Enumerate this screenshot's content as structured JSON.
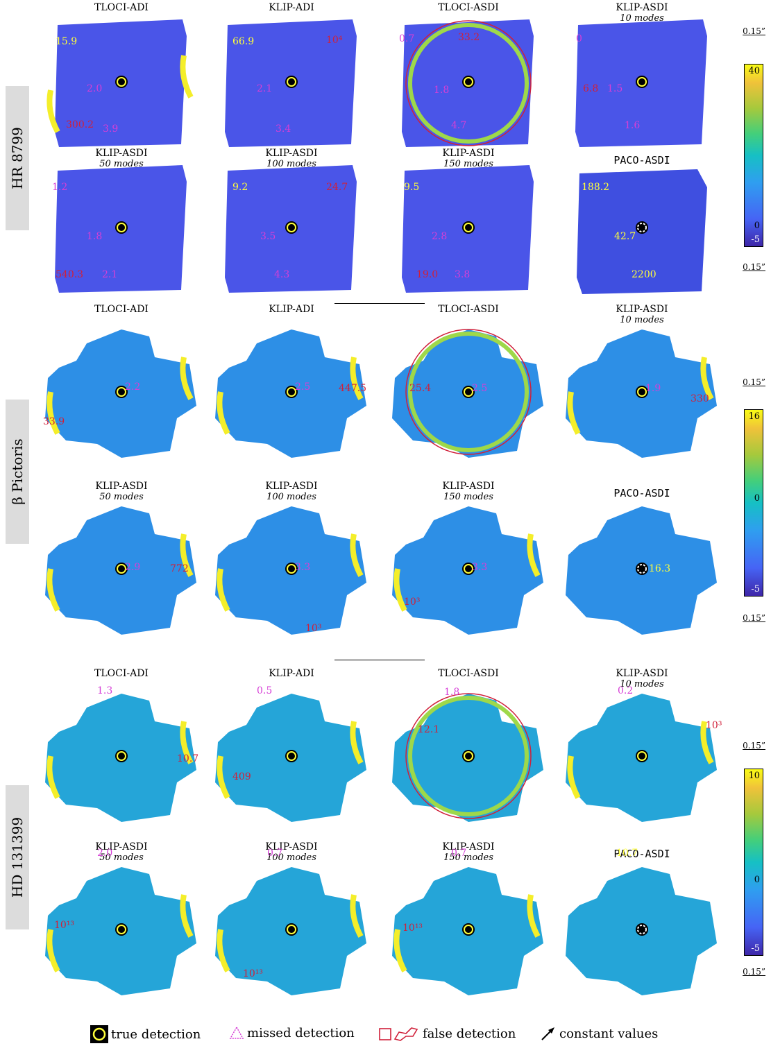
{
  "rows": [
    {
      "label": "HR 8799",
      "scale": "0.15”",
      "scale_bottom": "0.15”",
      "colorbar": {
        "max": "40",
        "zero": "0",
        "min": "-5"
      }
    },
    {
      "label": "β Pictoris",
      "scale": "0.15”",
      "scale_bottom": "0.15”",
      "colorbar": {
        "max": "16",
        "zero": "0",
        "min": "-5"
      }
    },
    {
      "label": "HD 131399",
      "scale": "0.15”",
      "scale_bottom": "0.15”",
      "colorbar": {
        "max": "10",
        "zero": "0",
        "min": "-5"
      }
    }
  ],
  "panels": [
    {
      "title": "TLOCI-ADI",
      "sub": "",
      "ann": [
        {
          "t": "15.9",
          "c": "yel"
        },
        {
          "t": "2.0",
          "c": "mag"
        },
        {
          "t": "300.2",
          "c": "red"
        },
        {
          "t": "3.9",
          "c": "mag"
        }
      ]
    },
    {
      "title": "KLIP-ADI",
      "sub": "",
      "ann": [
        {
          "t": "66.9",
          "c": "yel"
        },
        {
          "t": "10⁴",
          "c": "red"
        },
        {
          "t": "2.1",
          "c": "mag"
        },
        {
          "t": "3.4",
          "c": "mag"
        }
      ]
    },
    {
      "title": "TLOCI-ASDI",
      "sub": "",
      "ann": [
        {
          "t": "0.7",
          "c": "mag"
        },
        {
          "t": "33.2",
          "c": "red"
        },
        {
          "t": "1.8",
          "c": "mag"
        },
        {
          "t": "4.7",
          "c": "mag"
        }
      ]
    },
    {
      "title": "KLIP-ASDI",
      "sub": "10 modes",
      "ann": [
        {
          "t": "0",
          "c": "mag"
        },
        {
          "t": "6.8",
          "c": "red"
        },
        {
          "t": "1.5",
          "c": "mag"
        },
        {
          "t": "1.6",
          "c": "mag"
        }
      ]
    },
    {
      "title": "KLIP-ASDI",
      "sub": "50 modes",
      "ann": [
        {
          "t": "1.2",
          "c": "mag"
        },
        {
          "t": "1.8",
          "c": "mag"
        },
        {
          "t": "540.3",
          "c": "red"
        },
        {
          "t": "2.1",
          "c": "mag"
        }
      ]
    },
    {
      "title": "KLIP-ASDI",
      "sub": "100 modes",
      "ann": [
        {
          "t": "9.2",
          "c": "yel"
        },
        {
          "t": "24.7",
          "c": "red"
        },
        {
          "t": "3.5",
          "c": "mag"
        },
        {
          "t": "4.3",
          "c": "mag"
        }
      ]
    },
    {
      "title": "KLIP-ASDI",
      "sub": "150 modes",
      "ann": [
        {
          "t": "9.5",
          "c": "yel"
        },
        {
          "t": "2.8",
          "c": "mag"
        },
        {
          "t": "19.0",
          "c": "red"
        },
        {
          "t": "3.8",
          "c": "mag"
        }
      ]
    },
    {
      "title": "PACO-ASDI",
      "sub": "",
      "ann": [
        {
          "t": "188.2",
          "c": "yel"
        },
        {
          "t": "42.7",
          "c": "yel"
        },
        {
          "t": "2200",
          "c": "yel"
        }
      ]
    },
    {
      "title": "TLOCI-ADI",
      "sub": "",
      "ann": [
        {
          "t": "2.2",
          "c": "mag"
        },
        {
          "t": "33.9",
          "c": "red"
        }
      ]
    },
    {
      "title": "KLIP-ADI",
      "sub": "",
      "ann": [
        {
          "t": "2.5",
          "c": "mag"
        },
        {
          "t": "447.5",
          "c": "red"
        }
      ]
    },
    {
      "title": "TLOCI-ASDI",
      "sub": "",
      "ann": [
        {
          "t": "25.4",
          "c": "red"
        },
        {
          "t": "2.5",
          "c": "mag"
        }
      ]
    },
    {
      "title": "KLIP-ASDI",
      "sub": "10 modes",
      "ann": [
        {
          "t": "1.9",
          "c": "mag"
        },
        {
          "t": "330",
          "c": "red"
        }
      ]
    },
    {
      "title": "KLIP-ASDI",
      "sub": "50 modes",
      "ann": [
        {
          "t": "2.9",
          "c": "mag"
        },
        {
          "t": "772",
          "c": "red"
        }
      ]
    },
    {
      "title": "KLIP-ASDI",
      "sub": "100 modes",
      "ann": [
        {
          "t": "3.3",
          "c": "mag"
        },
        {
          "t": "10³",
          "c": "red"
        }
      ]
    },
    {
      "title": "KLIP-ASDI",
      "sub": "150 modes",
      "ann": [
        {
          "t": "3.3",
          "c": "mag"
        },
        {
          "t": "10³",
          "c": "red"
        }
      ]
    },
    {
      "title": "PACO-ASDI",
      "sub": "",
      "ann": [
        {
          "t": "16.3",
          "c": "yel"
        }
      ]
    },
    {
      "title": "TLOCI-ADI",
      "sub": "",
      "ann": [
        {
          "t": "1.3",
          "c": "mag"
        },
        {
          "t": "10.7",
          "c": "red"
        }
      ]
    },
    {
      "title": "KLIP-ADI",
      "sub": "",
      "ann": [
        {
          "t": "0.5",
          "c": "mag"
        },
        {
          "t": "409",
          "c": "red"
        }
      ]
    },
    {
      "title": "TLOCI-ASDI",
      "sub": "",
      "ann": [
        {
          "t": "1.8",
          "c": "mag"
        },
        {
          "t": "12.1",
          "c": "red"
        }
      ]
    },
    {
      "title": "KLIP-ASDI",
      "sub": "10 modes",
      "ann": [
        {
          "t": "0.2",
          "c": "mag"
        },
        {
          "t": "10³",
          "c": "red"
        }
      ]
    },
    {
      "title": "KLIP-ASDI",
      "sub": "50 modes",
      "ann": [
        {
          "t": "2.0",
          "c": "mag"
        },
        {
          "t": "10¹³",
          "c": "red"
        }
      ]
    },
    {
      "title": "KLIP-ASDI",
      "sub": "100 modes",
      "ann": [
        {
          "t": "0.7",
          "c": "mag"
        },
        {
          "t": "10¹³",
          "c": "red"
        }
      ]
    },
    {
      "title": "KLIP-ASDI",
      "sub": "150 modes",
      "ann": [
        {
          "t": "0.7",
          "c": "mag"
        },
        {
          "t": "10¹³",
          "c": "red"
        }
      ]
    },
    {
      "title": "PACO-ASDI",
      "sub": "",
      "ann": [
        {
          "t": "10.7",
          "c": "yel"
        }
      ]
    }
  ],
  "legend": {
    "true_detection": "true detection",
    "missed_detection": "missed detection",
    "false_detection": "false detection",
    "constant_values": "constant values"
  },
  "colors": {
    "map_blue": "#4a55e8",
    "map_cyan": "#2d8fe6",
    "map_teal": "#25a5d8",
    "false_red": "#d0203a",
    "missed_magenta": "#d63fd6",
    "true_yellow": "#ffff3a"
  }
}
